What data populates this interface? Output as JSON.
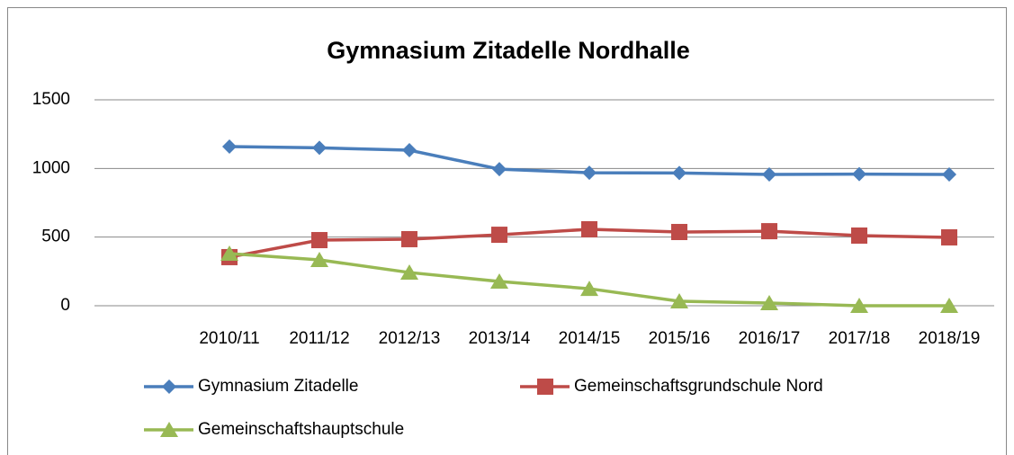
{
  "chart_data": {
    "type": "line",
    "title": "Gymnasium Zitadelle Nordhalle",
    "categories": [
      null,
      "2010/11",
      "2011/12",
      "2012/13",
      "2013/14",
      "2014/15",
      "2015/16",
      "2016/17",
      "2017/18",
      "2018/19"
    ],
    "series": [
      {
        "name": "Gymnasium Zitadelle",
        "color": "#4a7ebb",
        "marker": "diamond",
        "values": [
          null,
          1159,
          1150,
          1133,
          995,
          969,
          967,
          956,
          959,
          956
        ]
      },
      {
        "name": "Gemeinschaftsgrundschule Nord",
        "color": "#be4b48",
        "marker": "square",
        "values": [
          null,
          354,
          478,
          485,
          517,
          557,
          537,
          543,
          511,
          498
        ]
      },
      {
        "name": "Gemeinschaftshauptschule",
        "color": "#98b954",
        "marker": "triangle",
        "values": [
          null,
          380,
          334,
          242,
          177,
          124,
          33,
          20,
          0,
          0
        ]
      }
    ],
    "ylim": [
      0,
      1500
    ],
    "yticks": [
      0,
      500,
      1000,
      1500
    ],
    "grid": true,
    "legend": "bottom"
  }
}
